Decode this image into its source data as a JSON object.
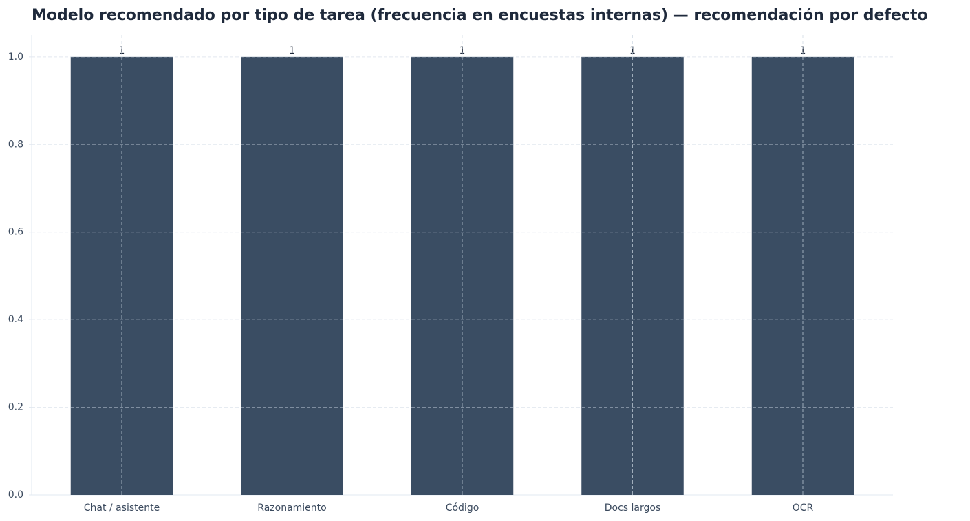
{
  "chart_data": {
    "type": "bar",
    "title": "Modelo recomendado por tipo de tarea (frecuencia en encuestas internas) — recomendación por defecto",
    "categories": [
      "Chat / asistente",
      "Razonamiento",
      "Código",
      "Docs largos",
      "OCR"
    ],
    "values": [
      1,
      1,
      1,
      1,
      1
    ],
    "color": "#3a4d63",
    "ylim": [
      0,
      1.05
    ],
    "yticks": [
      {
        "value": 0,
        "label": "0.0"
      },
      0.2,
      0.4,
      0.6,
      0.8,
      {
        "value": 1,
        "label": "1.0"
      }
    ],
    "grid": true
  }
}
